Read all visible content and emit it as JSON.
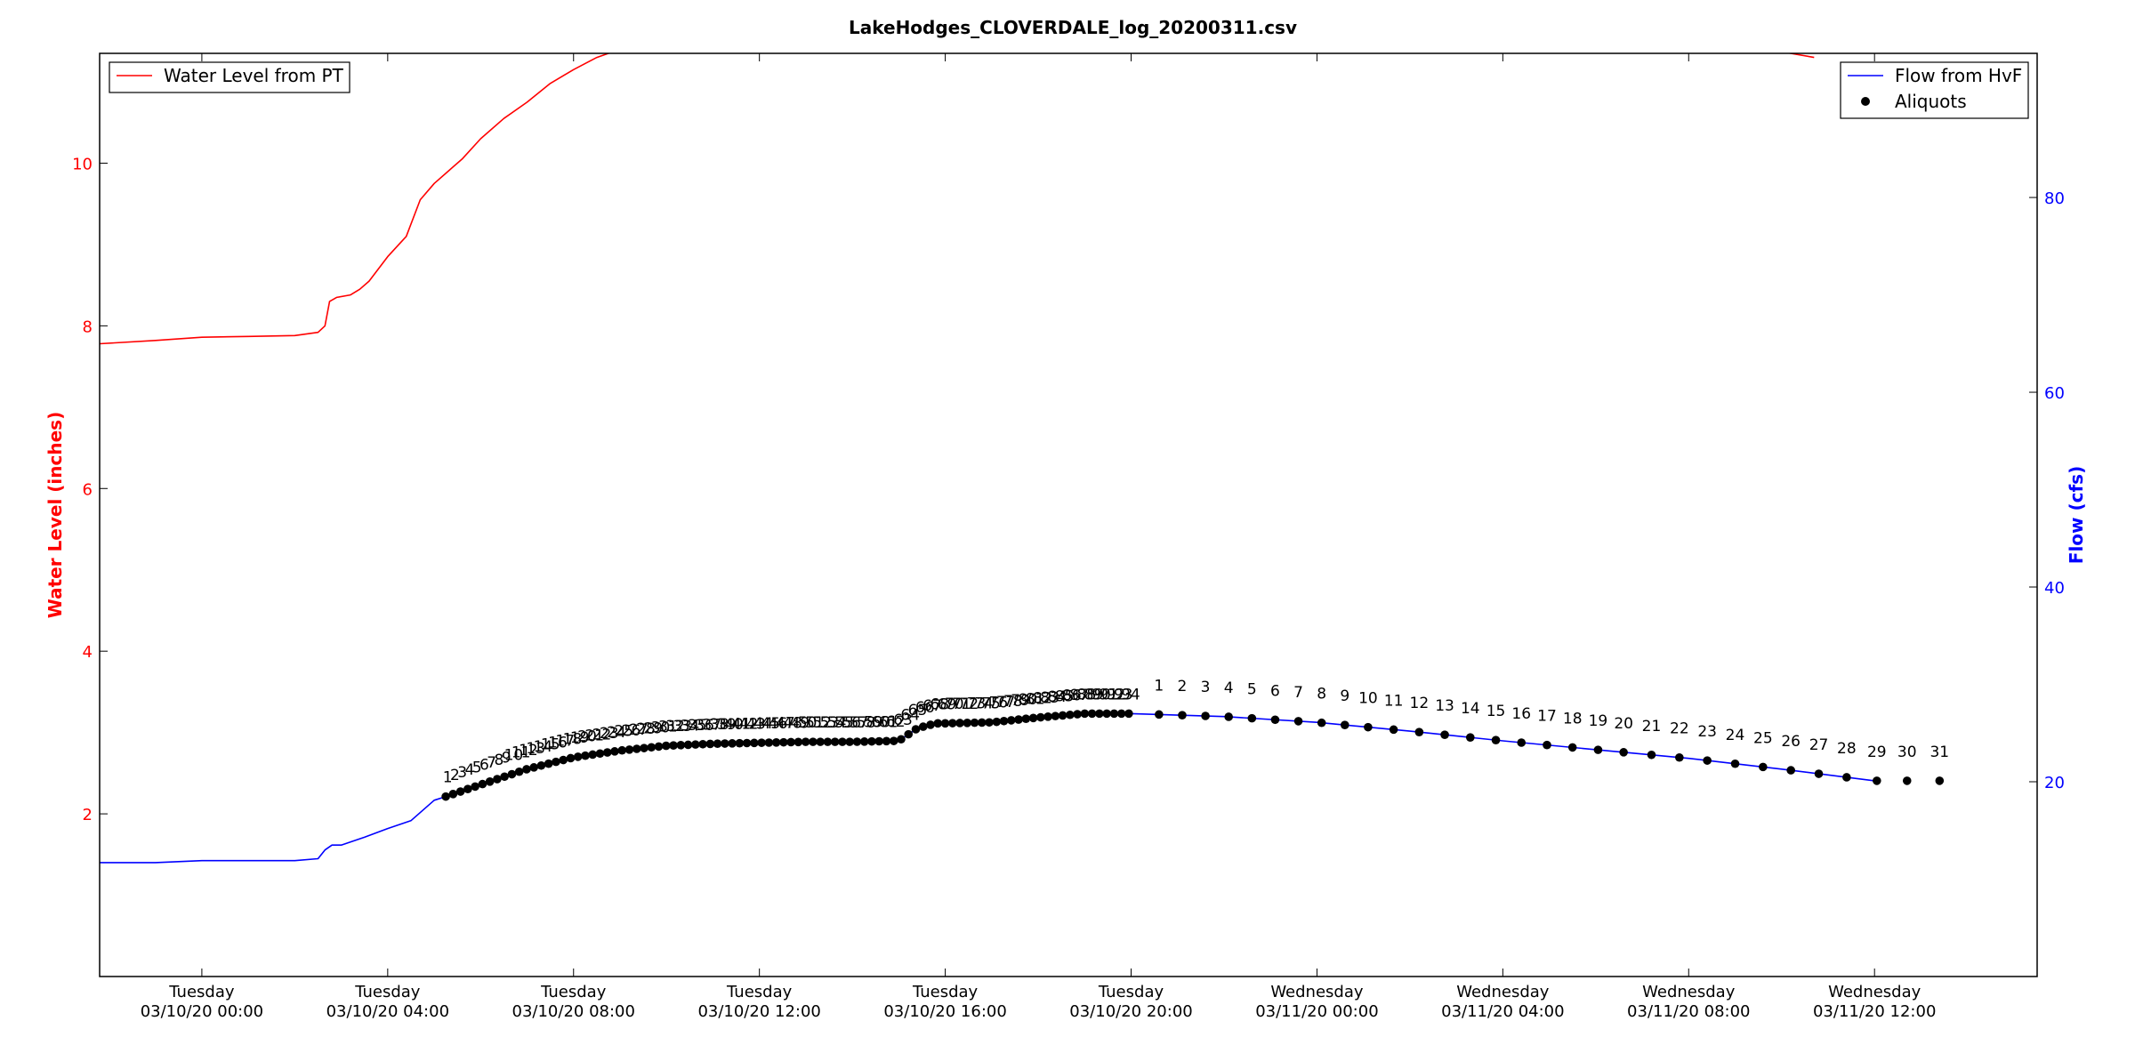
{
  "chart_data": {
    "type": "line",
    "title": "LakeHodges_CLOVERDALE_log_20200311.csv",
    "left_axis": {
      "label": "Water Level (inches)",
      "color": "#ff0000",
      "ylim": [
        0,
        11.35
      ],
      "ticks": [
        2,
        4,
        6,
        8,
        10
      ]
    },
    "right_axis": {
      "label": "Flow (cfs)",
      "color": "#0000ff",
      "ylim": [
        0,
        94.8
      ],
      "ticks": [
        20,
        40,
        60,
        80
      ]
    },
    "x_range_hours": [
      -2.2,
      39.5
    ],
    "x_ticks": [
      {
        "h": 0,
        "line1": "Tuesday",
        "line2": "03/10/20 00:00"
      },
      {
        "h": 4,
        "line1": "Tuesday",
        "line2": "03/10/20 04:00"
      },
      {
        "h": 8,
        "line1": "Tuesday",
        "line2": "03/10/20 08:00"
      },
      {
        "h": 12,
        "line1": "Tuesday",
        "line2": "03/10/20 12:00"
      },
      {
        "h": 16,
        "line1": "Tuesday",
        "line2": "03/10/20 16:00"
      },
      {
        "h": 20,
        "line1": "Tuesday",
        "line2": "03/10/20 20:00"
      },
      {
        "h": 24,
        "line1": "Wednesday",
        "line2": "03/11/20 00:00"
      },
      {
        "h": 28,
        "line1": "Wednesday",
        "line2": "03/11/20 04:00"
      },
      {
        "h": 32,
        "line1": "Wednesday",
        "line2": "03/11/20 08:00"
      },
      {
        "h": 36,
        "line1": "Wednesday",
        "line2": "03/11/20 12:00"
      }
    ],
    "legend_left": {
      "position": "upper-left",
      "entries": [
        {
          "label": "Water Level from PT",
          "color": "#ff0000",
          "marker": "line"
        }
      ]
    },
    "legend_right": {
      "position": "upper-right",
      "entries": [
        {
          "label": "Flow from HvF",
          "color": "#0000ff",
          "marker": "line"
        },
        {
          "label": "Aliquots",
          "color": "#000000",
          "marker": "dot"
        }
      ]
    },
    "series": [
      {
        "name": "Water Level from PT",
        "axis": "left",
        "color": "#ff0000",
        "x": [
          -2.2,
          -1.0,
          0.0,
          1.0,
          2.0,
          2.5,
          2.65,
          2.75,
          2.9,
          3.2,
          3.4,
          3.6,
          4.0,
          4.4,
          4.7,
          5.0,
          5.3,
          5.6,
          6.0,
          6.5,
          7.0,
          7.5,
          8.0,
          8.5,
          9.0,
          9.3,
          33.5,
          34.0,
          34.7
        ],
        "y": [
          7.78,
          7.82,
          7.86,
          7.87,
          7.88,
          7.92,
          8.0,
          8.3,
          8.35,
          8.38,
          8.45,
          8.55,
          8.85,
          9.1,
          9.55,
          9.75,
          9.9,
          10.05,
          10.3,
          10.55,
          10.75,
          10.98,
          11.15,
          11.3,
          11.4,
          11.5,
          11.5,
          11.37,
          11.3
        ]
      },
      {
        "name": "Flow from HvF",
        "axis": "right",
        "color": "#0000ff",
        "x": [
          -2.2,
          -1.0,
          0.0,
          1.0,
          2.0,
          2.5,
          2.65,
          2.8,
          3.0,
          3.5,
          4.0,
          4.5,
          5.0,
          5.2,
          6.0,
          7.0,
          8.0,
          9.0,
          10.0,
          11.0,
          12.0,
          13.0,
          14.0,
          15.0,
          15.4,
          15.8,
          16.0,
          17.0,
          18.0,
          19.0,
          20.0,
          22.0,
          24.0,
          26.0,
          28.0,
          30.0,
          32.0,
          34.0,
          36.0
        ],
        "y": [
          11.7,
          11.7,
          11.9,
          11.9,
          11.9,
          12.1,
          13.0,
          13.5,
          13.5,
          14.3,
          15.2,
          16.0,
          18.1,
          18.4,
          19.7,
          21.3,
          22.5,
          23.2,
          23.7,
          23.9,
          24.0,
          24.1,
          24.1,
          24.2,
          25.5,
          26.0,
          26.0,
          26.1,
          26.6,
          27.0,
          27.0,
          26.7,
          26.1,
          25.2,
          24.2,
          23.3,
          22.4,
          21.3,
          20.1
        ]
      }
    ],
    "aliquot_markers": {
      "dense_start_h": 5.25,
      "dense_end_h": 19.95,
      "dense_count": 94,
      "sparse": [
        {
          "h": 20.6,
          "label": "1"
        },
        {
          "h": 21.1,
          "label": "2"
        },
        {
          "h": 21.6,
          "label": "3"
        },
        {
          "h": 22.1,
          "label": "4"
        },
        {
          "h": 22.6,
          "label": "5"
        },
        {
          "h": 23.1,
          "label": "6"
        },
        {
          "h": 23.6,
          "label": "7"
        },
        {
          "h": 24.1,
          "label": "8"
        },
        {
          "h": 24.6,
          "label": "9"
        },
        {
          "h": 25.1,
          "label": "10"
        },
        {
          "h": 25.65,
          "label": "11"
        },
        {
          "h": 26.2,
          "label": "12"
        },
        {
          "h": 26.75,
          "label": "13"
        },
        {
          "h": 27.3,
          "label": "14"
        },
        {
          "h": 27.85,
          "label": "15"
        },
        {
          "h": 28.4,
          "label": "16"
        },
        {
          "h": 28.95,
          "label": "17"
        },
        {
          "h": 29.5,
          "label": "18"
        },
        {
          "h": 30.05,
          "label": "19"
        },
        {
          "h": 30.6,
          "label": "20"
        },
        {
          "h": 31.2,
          "label": "21"
        },
        {
          "h": 31.8,
          "label": "22"
        },
        {
          "h": 32.4,
          "label": "23"
        },
        {
          "h": 33.0,
          "label": "24"
        },
        {
          "h": 33.6,
          "label": "25"
        },
        {
          "h": 34.2,
          "label": "26"
        },
        {
          "h": 34.8,
          "label": "27"
        },
        {
          "h": 35.4,
          "label": "28"
        },
        {
          "h": 36.05,
          "label": "29"
        },
        {
          "h": 36.7,
          "label": "30"
        },
        {
          "h": 37.4,
          "label": "31"
        }
      ]
    }
  }
}
